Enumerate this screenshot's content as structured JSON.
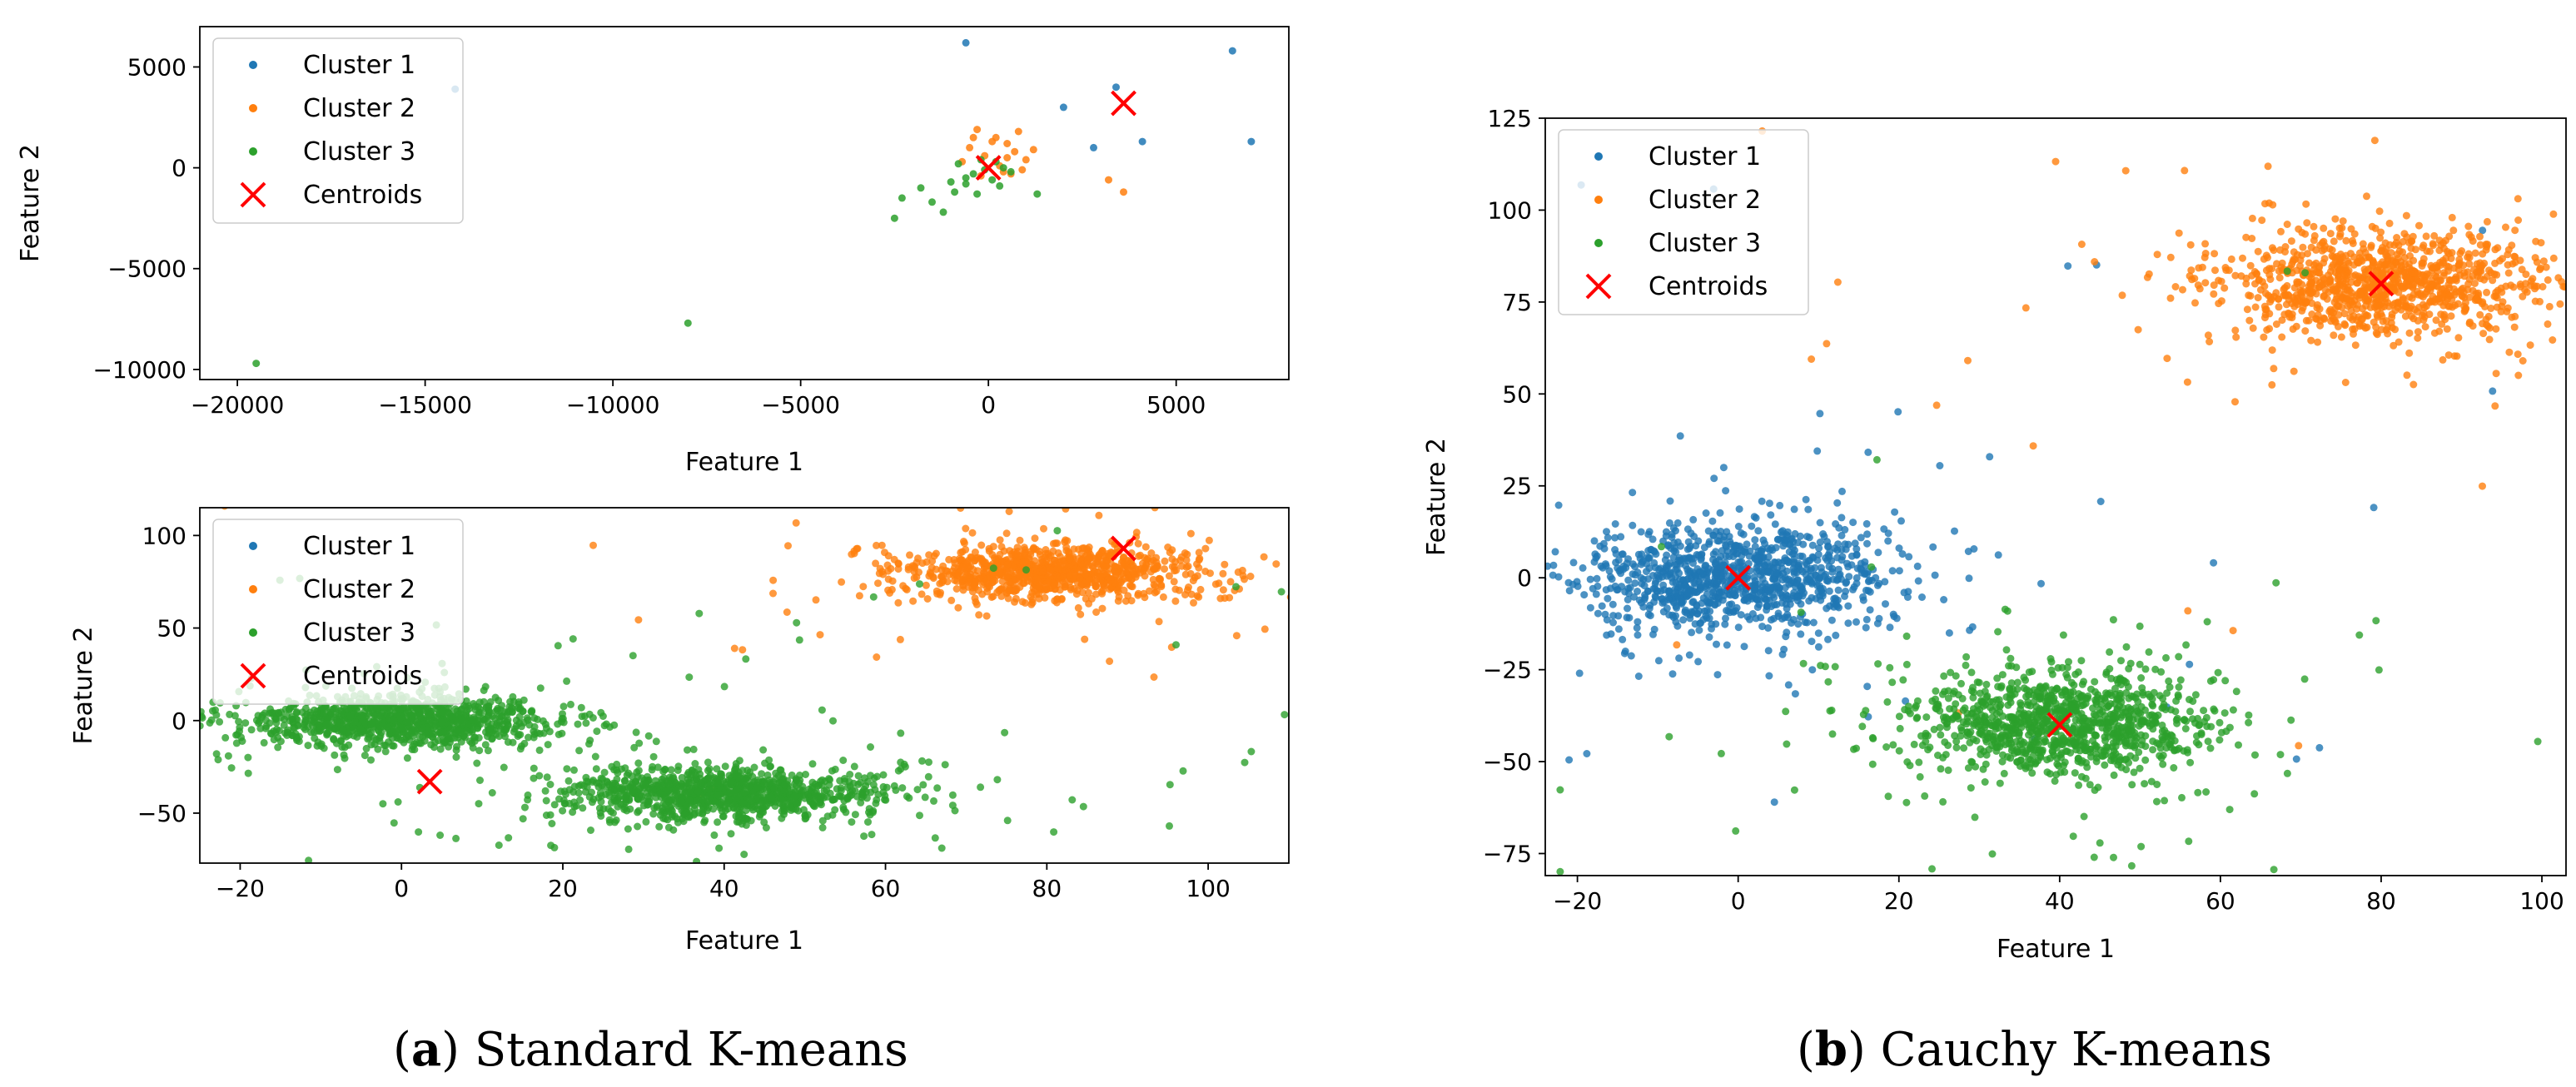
{
  "colors": {
    "cluster1": "#1f77b4",
    "cluster2": "#ff7f0e",
    "cluster3": "#2ca02c",
    "centroid": "#ff0000"
  },
  "captions": {
    "a_letter": "a",
    "a_text": " Standard K-means",
    "b_letter": "b",
    "b_text": " Cauchy K-means"
  },
  "chart_data": [
    {
      "id": "a_top",
      "type": "scatter",
      "title": "",
      "xlabel": "Feature 1",
      "ylabel": "Feature 2",
      "xlim": [
        -21000,
        8000
      ],
      "ylim": [
        -10500,
        7000
      ],
      "xticks": [
        -20000,
        -15000,
        -10000,
        -5000,
        0,
        5000
      ],
      "yticks": [
        -10000,
        -5000,
        0,
        5000
      ],
      "legend": [
        "Cluster 1",
        "Cluster 2",
        "Cluster 3",
        "Centroids"
      ],
      "legend_loc": "upper left",
      "series": [
        {
          "name": "Cluster 1",
          "points": [
            [
              -600,
              6200
            ],
            [
              3400,
              4000
            ],
            [
              6500,
              5800
            ],
            [
              2000,
              3000
            ],
            [
              4100,
              1300
            ],
            [
              7000,
              1300
            ],
            [
              2800,
              1000
            ],
            [
              -14200,
              3900
            ]
          ]
        },
        {
          "name": "Cluster 2",
          "points": [
            [
              -300,
              1900
            ],
            [
              200,
              1500
            ],
            [
              500,
              1200
            ],
            [
              700,
              800
            ],
            [
              -500,
              1000
            ],
            [
              1000,
              400
            ],
            [
              3200,
              -600
            ],
            [
              3600,
              -1200
            ],
            [
              400,
              -200
            ],
            [
              800,
              1800
            ],
            [
              -100,
              600
            ],
            [
              300,
              100
            ],
            [
              600,
              -300
            ],
            [
              -700,
              300
            ],
            [
              1200,
              900
            ],
            [
              -200,
              -400
            ],
            [
              900,
              -100
            ],
            [
              100,
              1300
            ],
            [
              -400,
              1500
            ],
            [
              500,
              500
            ]
          ]
        },
        {
          "name": "Cluster 3",
          "points": [
            [
              -19500,
              -9700
            ],
            [
              -8000,
              -7700
            ],
            [
              -2500,
              -2500
            ],
            [
              -1500,
              -1700
            ],
            [
              -1200,
              -2200
            ],
            [
              -900,
              -1200
            ],
            [
              -600,
              -800
            ],
            [
              -1800,
              -1000
            ],
            [
              -400,
              -300
            ],
            [
              -200,
              400
            ],
            [
              100,
              -600
            ],
            [
              300,
              -900
            ],
            [
              -800,
              200
            ],
            [
              600,
              -200
            ],
            [
              -300,
              -1300
            ],
            [
              1300,
              -1300
            ],
            [
              -2300,
              -1500
            ],
            [
              -1000,
              -700
            ],
            [
              200,
              300
            ],
            [
              -100,
              -100
            ],
            [
              400,
              0
            ],
            [
              -600,
              -500
            ]
          ]
        }
      ],
      "centroids": [
        [
          0,
          0
        ],
        [
          3600,
          3200
        ]
      ]
    },
    {
      "id": "a_bottom",
      "type": "scatter",
      "title": "",
      "xlabel": "Feature 1",
      "ylabel": "Feature 2",
      "xlim": [
        -25,
        110
      ],
      "ylim": [
        -77,
        115
      ],
      "xticks": [
        -20,
        0,
        20,
        40,
        60,
        80,
        100
      ],
      "yticks": [
        -50,
        0,
        50,
        100
      ],
      "legend": [
        "Cluster 1",
        "Cluster 2",
        "Cluster 3",
        "Centroids"
      ],
      "legend_loc": "upper left",
      "series": [
        {
          "name": "Cluster 1",
          "blobs": []
        },
        {
          "name": "Cluster 2",
          "blobs": [
            {
              "cx": 80,
              "cy": 80,
              "sx": 8,
              "sy": 8,
              "n": 1000,
              "heavy": 0.2
            }
          ]
        },
        {
          "name": "Cluster 3",
          "blobs": [
            {
              "cx": 0,
              "cy": 0,
              "sx": 8,
              "sy": 8,
              "n": 1100,
              "heavy": 0.2
            },
            {
              "cx": 40,
              "cy": -40,
              "sx": 8,
              "sy": 8,
              "n": 1100,
              "heavy": 0.2
            }
          ]
        }
      ],
      "centroids": [
        [
          3.5,
          -33
        ],
        [
          89.5,
          93
        ]
      ]
    },
    {
      "id": "b",
      "type": "scatter",
      "title": "",
      "xlabel": "Feature 1",
      "ylabel": "Feature 2",
      "xlim": [
        -24,
        103
      ],
      "ylim": [
        -81,
        125
      ],
      "xticks": [
        -20,
        0,
        20,
        40,
        60,
        80,
        100
      ],
      "yticks": [
        -75,
        -50,
        -25,
        0,
        25,
        50,
        75,
        100,
        125
      ],
      "legend": [
        "Cluster 1",
        "Cluster 2",
        "Cluster 3",
        "Centroids"
      ],
      "legend_loc": "upper left",
      "series": [
        {
          "name": "Cluster 1",
          "blobs": [
            {
              "cx": 0,
              "cy": 0,
              "sx": 8,
              "sy": 8,
              "n": 1100,
              "heavy": 0.2
            }
          ]
        },
        {
          "name": "Cluster 2",
          "blobs": [
            {
              "cx": 80,
              "cy": 80,
              "sx": 8,
              "sy": 8,
              "n": 1100,
              "heavy": 0.2
            }
          ]
        },
        {
          "name": "Cluster 3",
          "blobs": [
            {
              "cx": 40,
              "cy": -40,
              "sx": 8,
              "sy": 8,
              "n": 1100,
              "heavy": 0.2
            }
          ]
        }
      ],
      "centroids": [
        [
          0,
          0
        ],
        [
          40,
          -40
        ],
        [
          80,
          80
        ]
      ]
    }
  ]
}
